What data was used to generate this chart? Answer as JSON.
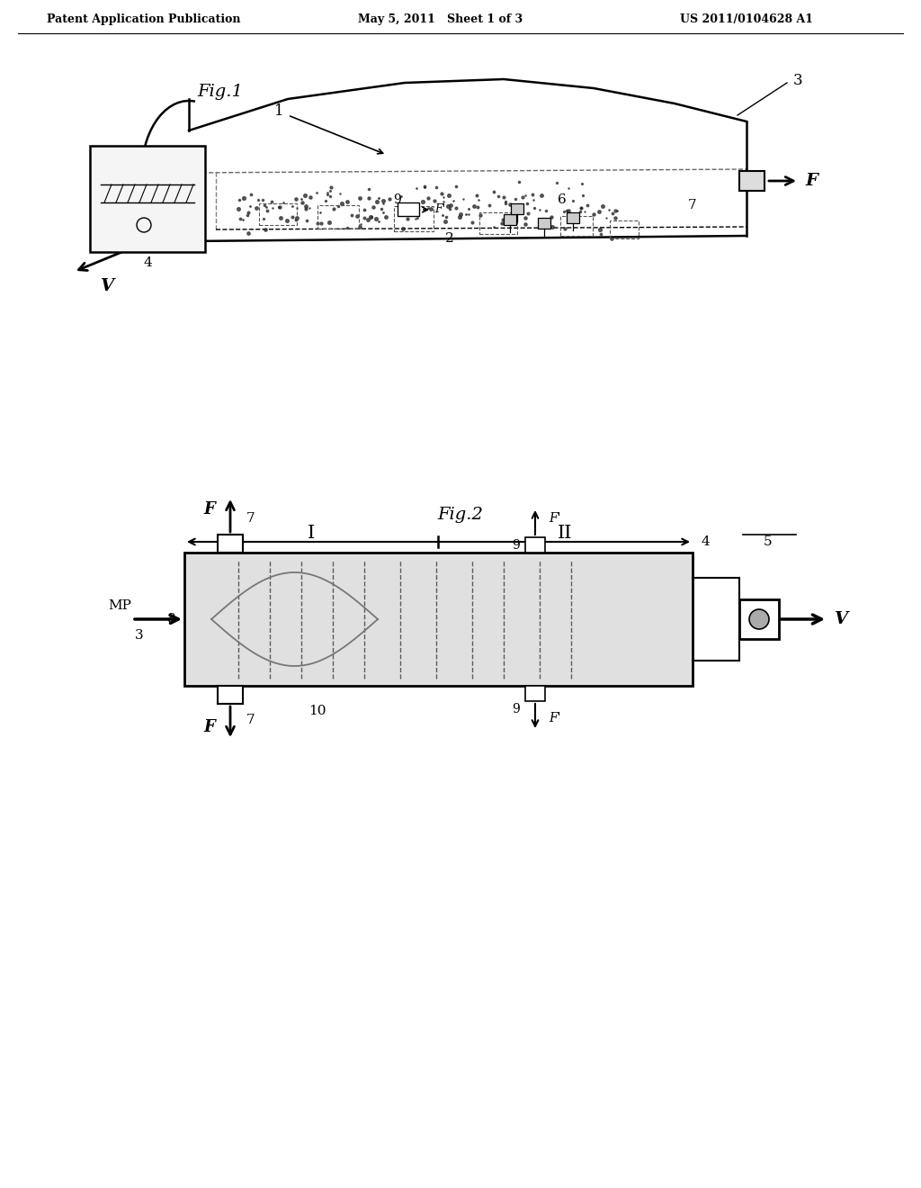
{
  "bg_color": "#ffffff",
  "lc": "#000000",
  "header_left": "Patent Application Publication",
  "header_mid": "May 5, 2011   Sheet 1 of 3",
  "header_right": "US 2011/0104628 A1",
  "fig1_label": "Fig.1",
  "fig2_label": "Fig.2"
}
